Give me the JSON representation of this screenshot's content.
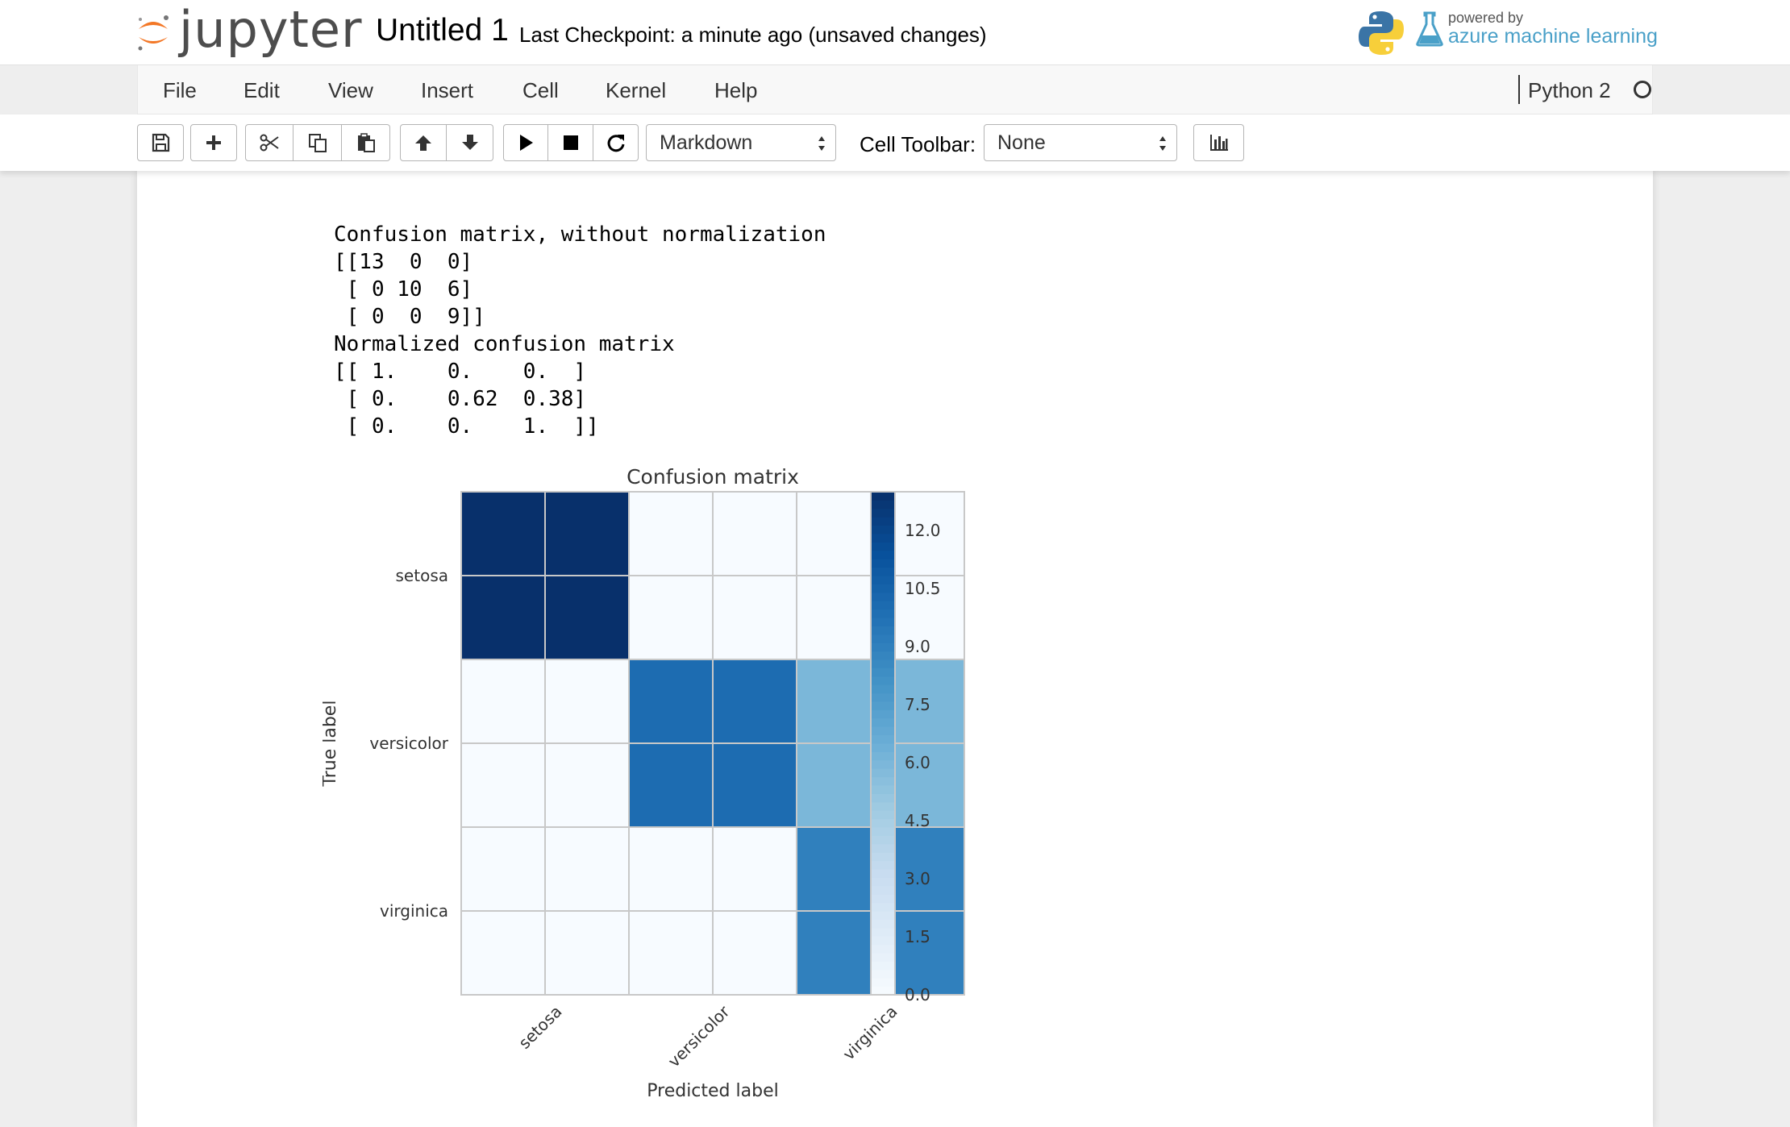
{
  "header": {
    "logo_text": "jupyter",
    "notebook_name": "Untitled 1",
    "checkpoint": "Last Checkpoint: a minute ago (unsaved changes)",
    "powered_by": "powered by",
    "azure_text": "azure machine learning"
  },
  "menubar": {
    "items": [
      "File",
      "Edit",
      "View",
      "Insert",
      "Cell",
      "Kernel",
      "Help"
    ],
    "kernel_name": "Python 2"
  },
  "toolbar": {
    "cell_type": "Markdown",
    "cell_toolbar_label": "Cell Toolbar:",
    "cell_toolbar_value": "None",
    "icons": [
      "save-icon",
      "plus-icon",
      "cut-icon",
      "copy-icon",
      "paste-icon",
      "arrow-up-icon",
      "arrow-down-icon",
      "run-icon",
      "stop-icon",
      "restart-icon",
      "bar-chart-icon"
    ]
  },
  "output": {
    "lines": [
      "Confusion matrix, without normalization",
      "[[13  0  0]",
      " [ 0 10  6]",
      " [ 0  0  9]]",
      "Normalized confusion matrix",
      "[[ 1.    0.    0.  ]",
      " [ 0.    0.62  0.38]",
      " [ 0.    0.    1.  ]]"
    ]
  },
  "chart_data": {
    "type": "heatmap",
    "title": "Confusion matrix",
    "xlabel": "Predicted label",
    "ylabel": "True label",
    "x_categories": [
      "setosa",
      "versicolor",
      "virginica"
    ],
    "y_categories": [
      "setosa",
      "versicolor",
      "virginica"
    ],
    "values": [
      [
        13,
        0,
        0
      ],
      [
        0,
        10,
        6
      ],
      [
        0,
        0,
        9
      ]
    ],
    "colormap": "Blues",
    "colorbar": {
      "range": [
        0,
        13
      ],
      "ticks": [
        0.0,
        1.5,
        3.0,
        4.5,
        6.0,
        7.5,
        9.0,
        10.5,
        12.0
      ],
      "tick_labels": [
        "0.0",
        "1.5",
        "3.0",
        "4.5",
        "6.0",
        "7.5",
        "9.0",
        "10.5",
        "12.0"
      ]
    },
    "grid": true
  }
}
